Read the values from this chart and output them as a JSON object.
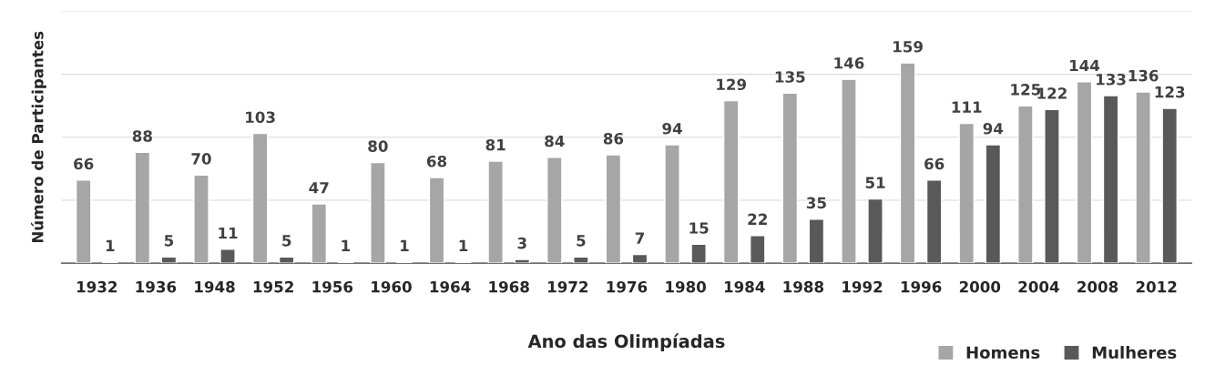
{
  "chart_data": {
    "type": "bar",
    "xlabel": "Ano das Olimpíadas",
    "ylabel": "Número de Participantes",
    "categories": [
      "1932",
      "1936",
      "1948",
      "1952",
      "1956",
      "1960",
      "1964",
      "1968",
      "1972",
      "1976",
      "1980",
      "1984",
      "1988",
      "1992",
      "1996",
      "2000",
      "2004",
      "2008",
      "2012"
    ],
    "series": [
      {
        "name": "Homens",
        "color": "#a6a6a6",
        "values": [
          66,
          88,
          70,
          103,
          47,
          80,
          68,
          81,
          84,
          86,
          94,
          129,
          135,
          146,
          159,
          111,
          125,
          144,
          136
        ]
      },
      {
        "name": "Mulheres",
        "color": "#595959",
        "values": [
          1,
          5,
          11,
          5,
          1,
          1,
          1,
          3,
          5,
          7,
          15,
          22,
          35,
          51,
          66,
          94,
          122,
          133,
          123
        ]
      }
    ],
    "ylim": [
      0,
      200
    ],
    "yticks": [
      {
        "value": 0,
        "label": null
      },
      {
        "value": 50,
        "label": null
      },
      {
        "value": 100,
        "label": null
      },
      {
        "value": 150,
        "label": null
      },
      {
        "value": 200,
        "label": null
      }
    ],
    "tick_labels": "x",
    "grid": "y",
    "legend": "bottom right",
    "data_labels": true
  }
}
